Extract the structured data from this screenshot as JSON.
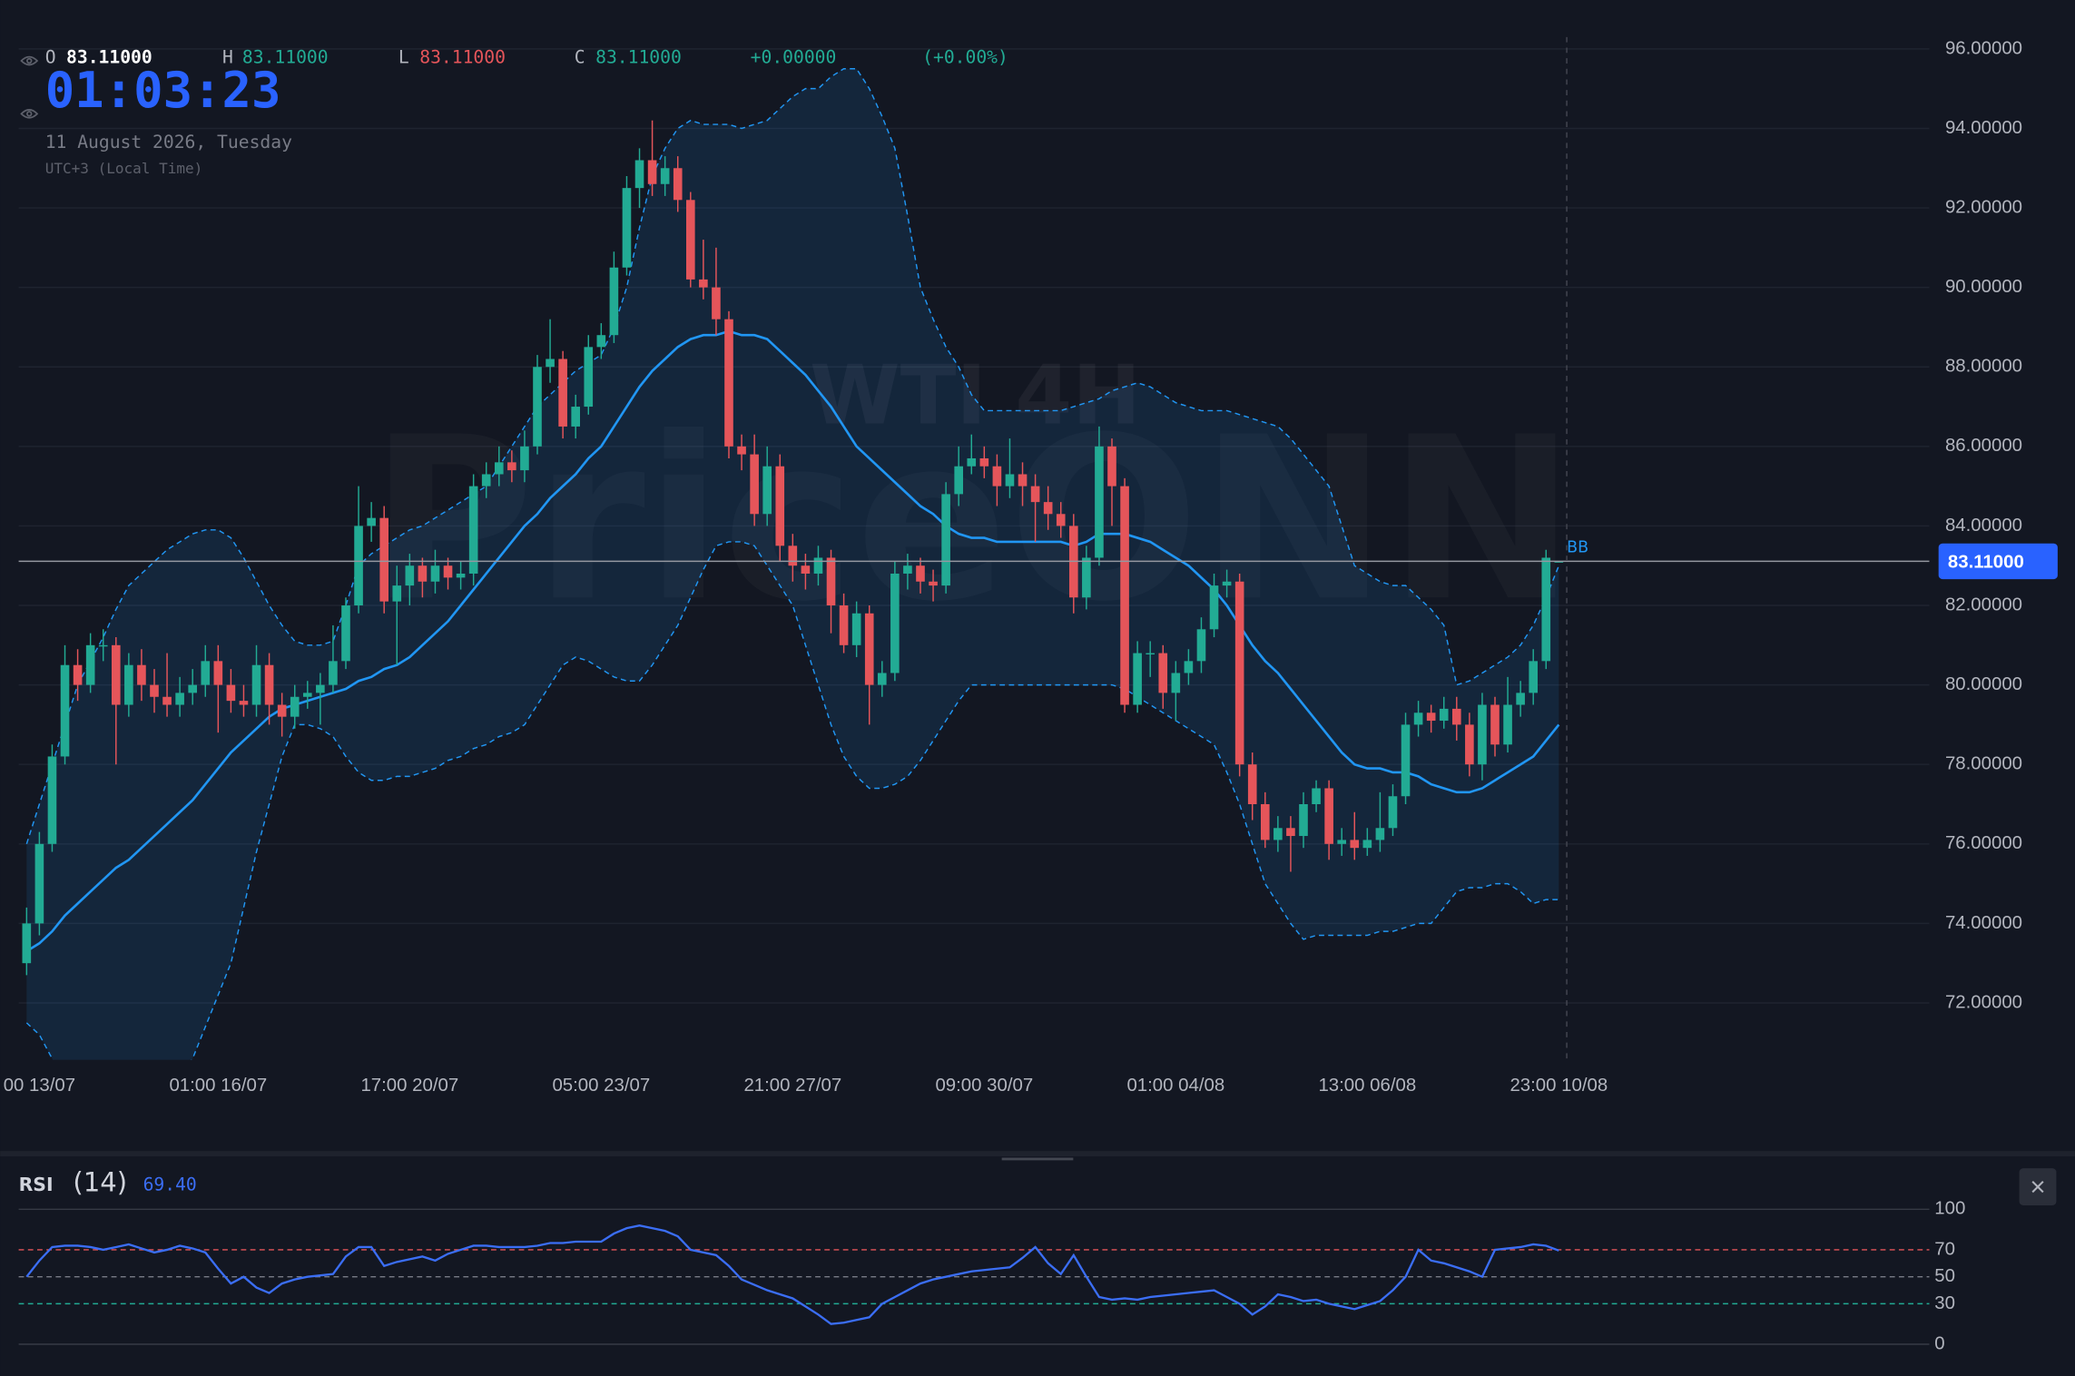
{
  "header": {
    "o_label": "O",
    "o": "83.11000",
    "h_label": "H",
    "h": "83.11000",
    "l_label": "L",
    "l": "83.11000",
    "c_label": "C",
    "c": "83.11000",
    "change": "+0.00000",
    "change_pct": "(+0.00%)",
    "clock": "01:03:23",
    "date": "11 August 2026, Tuesday",
    "timezone": "UTC+3 (Local Time)"
  },
  "chart_data": [
    {
      "type": "candlestick",
      "watermark": [
        "WTI 4H",
        "PriceONN"
      ],
      "categories": [
        null,
        "00 13/07",
        null,
        null,
        null,
        null,
        null,
        null,
        null,
        null,
        null,
        null,
        null,
        null,
        null,
        "01:00 16/07",
        null,
        null,
        null,
        null,
        null,
        null,
        null,
        null,
        null,
        null,
        null,
        null,
        null,
        null,
        "17:00 20/07",
        null,
        null,
        null,
        null,
        null,
        null,
        null,
        null,
        null,
        null,
        null,
        null,
        null,
        null,
        "05:00 23/07",
        null,
        null,
        null,
        null,
        null,
        null,
        null,
        null,
        null,
        null,
        null,
        null,
        null,
        null,
        "21:00 27/07",
        null,
        null,
        null,
        null,
        null,
        null,
        null,
        null,
        null,
        null,
        null,
        null,
        null,
        null,
        "09:00 30/07",
        null,
        null,
        null,
        null,
        null,
        null,
        null,
        null,
        null,
        null,
        null,
        null,
        null,
        null,
        "01:00 04/08",
        null,
        null,
        null,
        null,
        null,
        null,
        null,
        null,
        null,
        null,
        null,
        null,
        null,
        null,
        "13:00 06/08",
        null,
        null,
        null,
        null,
        null,
        null,
        null,
        null,
        null,
        null,
        null,
        null,
        null,
        null,
        "23:00 10/08"
      ],
      "open": [
        73.0,
        74.0,
        76.0,
        78.2,
        80.5,
        80.0,
        81.0,
        81.0,
        79.5,
        80.5,
        80.0,
        79.7,
        79.5,
        79.8,
        80.0,
        80.6,
        80.0,
        79.6,
        79.5,
        80.5,
        79.5,
        79.2,
        79.7,
        79.8,
        80.0,
        80.6,
        82.0,
        84.0,
        84.2,
        82.1,
        82.5,
        83.0,
        82.6,
        83.0,
        82.7,
        82.8,
        85.0,
        85.3,
        85.6,
        85.4,
        86.0,
        88.0,
        88.2,
        86.5,
        87.0,
        88.5,
        88.8,
        90.5,
        92.5,
        93.2,
        92.6,
        93.0,
        92.2,
        90.2,
        90.0,
        89.2,
        86.0,
        85.8,
        84.3,
        85.5,
        83.5,
        83.0,
        82.8,
        83.2,
        82.0,
        81.0,
        81.8,
        80.0,
        80.3,
        82.8,
        83.0,
        82.6,
        82.5,
        84.8,
        85.5,
        85.7,
        85.5,
        85.0,
        85.3,
        85.0,
        84.6,
        84.3,
        84.0,
        82.2,
        83.2,
        86.0,
        85.0,
        79.5,
        80.8,
        80.8,
        79.8,
        80.3,
        80.6,
        81.4,
        82.5,
        82.6,
        78.0,
        77.0,
        76.1,
        76.4,
        76.2,
        77.0,
        77.4,
        76.0,
        76.1,
        75.9,
        76.1,
        76.4,
        77.2,
        79.0,
        79.3,
        79.1,
        79.4,
        79.0,
        78.0,
        79.5,
        78.5,
        79.5,
        79.8,
        80.6,
        83.11
      ],
      "high": [
        74.4,
        76.3,
        78.5,
        81.0,
        80.9,
        81.3,
        81.4,
        81.2,
        80.8,
        80.9,
        80.4,
        80.8,
        80.2,
        80.4,
        81.0,
        81.0,
        80.4,
        80.0,
        81.0,
        80.8,
        79.8,
        80.0,
        80.1,
        80.3,
        81.5,
        82.2,
        85.0,
        84.6,
        84.5,
        83.0,
        83.3,
        83.2,
        83.4,
        83.2,
        83.1,
        85.3,
        85.6,
        86.0,
        85.9,
        86.4,
        88.3,
        89.2,
        88.4,
        87.3,
        88.8,
        89.1,
        90.9,
        92.8,
        93.5,
        94.2,
        93.3,
        93.3,
        92.4,
        91.2,
        91.0,
        89.4,
        86.3,
        86.3,
        86.0,
        85.8,
        83.8,
        83.3,
        83.5,
        83.4,
        82.3,
        82.1,
        82.0,
        80.6,
        83.1,
        83.3,
        83.2,
        82.9,
        85.1,
        86.0,
        86.3,
        86.0,
        85.8,
        86.2,
        85.6,
        85.3,
        85.0,
        84.6,
        84.3,
        83.5,
        86.5,
        86.2,
        85.2,
        81.1,
        81.1,
        81.0,
        80.6,
        80.9,
        81.7,
        82.8,
        82.9,
        82.8,
        78.3,
        77.3,
        76.7,
        76.7,
        77.3,
        77.6,
        77.6,
        76.4,
        76.8,
        76.4,
        77.3,
        77.5,
        79.3,
        79.6,
        79.5,
        79.7,
        79.7,
        79.3,
        79.8,
        79.7,
        80.2,
        80.1,
        80.9,
        83.4,
        83.11
      ],
      "low": [
        72.7,
        73.7,
        75.8,
        78.0,
        79.6,
        79.8,
        80.6,
        78.0,
        79.2,
        79.6,
        79.3,
        79.2,
        79.2,
        79.5,
        79.7,
        78.8,
        79.3,
        79.2,
        79.2,
        79.0,
        78.7,
        78.9,
        79.4,
        79.0,
        79.8,
        80.4,
        81.8,
        83.6,
        81.8,
        80.5,
        82.0,
        82.2,
        82.3,
        82.4,
        82.4,
        82.5,
        84.7,
        85.0,
        85.1,
        85.1,
        85.8,
        87.6,
        86.2,
        86.2,
        86.8,
        88.2,
        88.6,
        90.3,
        92.0,
        92.3,
        92.3,
        91.9,
        90.0,
        89.7,
        88.8,
        85.7,
        85.4,
        84.0,
        84.0,
        83.1,
        82.6,
        82.4,
        82.5,
        81.3,
        80.8,
        80.7,
        79.0,
        79.7,
        80.1,
        82.4,
        82.3,
        82.1,
        82.3,
        84.5,
        85.3,
        85.2,
        84.5,
        84.7,
        84.5,
        83.6,
        83.9,
        83.7,
        81.8,
        81.9,
        83.0,
        84.0,
        79.3,
        79.3,
        80.2,
        79.4,
        79.1,
        80.0,
        80.3,
        81.2,
        82.2,
        77.7,
        76.6,
        75.9,
        75.8,
        75.3,
        75.9,
        76.8,
        75.6,
        75.7,
        75.6,
        75.7,
        75.8,
        76.2,
        77.0,
        78.7,
        78.8,
        78.9,
        78.6,
        77.7,
        77.6,
        78.2,
        78.3,
        79.2,
        79.5,
        80.4,
        83.11
      ],
      "close": [
        74.0,
        76.0,
        78.2,
        80.5,
        80.0,
        81.0,
        81.0,
        79.5,
        80.5,
        80.0,
        79.7,
        79.5,
        79.8,
        80.0,
        80.6,
        80.0,
        79.6,
        79.5,
        80.5,
        79.5,
        79.2,
        79.7,
        79.8,
        80.0,
        80.6,
        82.0,
        84.0,
        84.2,
        82.1,
        82.5,
        83.0,
        82.6,
        83.0,
        82.7,
        82.8,
        85.0,
        85.3,
        85.6,
        85.4,
        86.0,
        88.0,
        88.2,
        86.5,
        87.0,
        88.5,
        88.8,
        90.5,
        92.5,
        93.2,
        92.6,
        93.0,
        92.2,
        90.2,
        90.0,
        89.2,
        86.0,
        85.8,
        84.3,
        85.5,
        83.5,
        83.0,
        82.8,
        83.2,
        82.0,
        81.0,
        81.8,
        80.0,
        80.3,
        82.8,
        83.0,
        82.6,
        82.5,
        84.8,
        85.5,
        85.7,
        85.5,
        85.0,
        85.3,
        85.0,
        84.6,
        84.3,
        84.0,
        82.2,
        83.2,
        86.0,
        85.0,
        79.5,
        80.8,
        80.8,
        79.8,
        80.3,
        80.6,
        81.4,
        82.5,
        82.6,
        78.0,
        77.0,
        76.1,
        76.4,
        76.2,
        77.0,
        77.4,
        76.0,
        76.1,
        75.9,
        76.1,
        76.4,
        77.2,
        79.0,
        79.3,
        79.1,
        79.4,
        79.0,
        78.0,
        79.5,
        78.5,
        79.5,
        79.8,
        80.6,
        83.2,
        83.11
      ],
      "up_color": "#22ab94",
      "down_color": "#e5555a",
      "bands": {
        "name": "BB",
        "color": "#2196f3",
        "upper": [
          76.0,
          77.0,
          78.0,
          79.0,
          80.0,
          80.6,
          81.2,
          81.9,
          82.5,
          82.8,
          83.1,
          83.4,
          83.6,
          83.8,
          83.9,
          83.9,
          83.7,
          83.2,
          82.6,
          82.0,
          81.5,
          81.1,
          81.0,
          81.0,
          81.1,
          82.0,
          83.0,
          83.3,
          83.5,
          83.7,
          83.9,
          84.0,
          84.2,
          84.4,
          84.6,
          84.8,
          85.0,
          85.5,
          86.0,
          86.5,
          87.0,
          87.3,
          87.6,
          87.9,
          88.1,
          88.3,
          89.0,
          90.0,
          91.5,
          92.8,
          93.5,
          94.0,
          94.2,
          94.1,
          94.1,
          94.1,
          94.0,
          94.1,
          94.2,
          94.5,
          94.8,
          95.0,
          95.0,
          95.3,
          95.5,
          95.5,
          95.0,
          94.3,
          93.5,
          91.8,
          90.0,
          89.2,
          88.5,
          88.0,
          87.3,
          86.9,
          86.9,
          86.9,
          86.9,
          86.9,
          86.9,
          86.9,
          87.0,
          87.1,
          87.2,
          87.4,
          87.5,
          87.6,
          87.5,
          87.3,
          87.1,
          87.0,
          86.9,
          86.9,
          86.9,
          86.8,
          86.7,
          86.6,
          86.5,
          86.2,
          85.8,
          85.4,
          85.0,
          84.0,
          83.0,
          82.8,
          82.6,
          82.5,
          82.5,
          82.2,
          81.9,
          81.5,
          80.0,
          80.1,
          80.3,
          80.5,
          80.7,
          81.0,
          81.5,
          82.2,
          83.0
        ],
        "middle": [
          73.3,
          73.5,
          73.8,
          74.2,
          74.5,
          74.8,
          75.1,
          75.4,
          75.6,
          75.9,
          76.2,
          76.5,
          76.8,
          77.1,
          77.5,
          77.9,
          78.3,
          78.6,
          78.9,
          79.2,
          79.4,
          79.5,
          79.6,
          79.7,
          79.8,
          79.9,
          80.1,
          80.2,
          80.4,
          80.5,
          80.7,
          81.0,
          81.3,
          81.6,
          82.0,
          82.4,
          82.8,
          83.2,
          83.6,
          84.0,
          84.3,
          84.7,
          85.0,
          85.3,
          85.7,
          86.0,
          86.5,
          87.0,
          87.5,
          87.9,
          88.2,
          88.5,
          88.7,
          88.8,
          88.8,
          88.9,
          88.8,
          88.8,
          88.7,
          88.4,
          88.1,
          87.8,
          87.4,
          87.0,
          86.5,
          86.0,
          85.7,
          85.4,
          85.1,
          84.8,
          84.5,
          84.3,
          84.0,
          83.8,
          83.7,
          83.7,
          83.6,
          83.6,
          83.6,
          83.6,
          83.6,
          83.6,
          83.5,
          83.6,
          83.8,
          83.8,
          83.8,
          83.7,
          83.6,
          83.4,
          83.2,
          83.0,
          82.7,
          82.4,
          82.0,
          81.5,
          81.0,
          80.6,
          80.3,
          79.9,
          79.5,
          79.1,
          78.7,
          78.3,
          78.0,
          77.9,
          77.9,
          77.8,
          77.8,
          77.7,
          77.5,
          77.4,
          77.3,
          77.3,
          77.4,
          77.6,
          77.8,
          78.0,
          78.2,
          78.6,
          79.0
        ],
        "lower": [
          71.5,
          71.2,
          70.6,
          70.0,
          69.5,
          69.1,
          68.8,
          68.7,
          68.8,
          69.0,
          69.3,
          69.7,
          70.1,
          70.6,
          71.4,
          72.2,
          73.0,
          74.4,
          75.8,
          77.0,
          78.2,
          79.0,
          79.0,
          78.9,
          78.7,
          78.2,
          77.8,
          77.6,
          77.6,
          77.7,
          77.7,
          77.8,
          77.9,
          78.1,
          78.2,
          78.4,
          78.5,
          78.7,
          78.8,
          79.0,
          79.5,
          80.0,
          80.5,
          80.7,
          80.6,
          80.4,
          80.2,
          80.1,
          80.1,
          80.5,
          81.0,
          81.5,
          82.2,
          82.9,
          83.5,
          83.6,
          83.6,
          83.5,
          83.0,
          82.5,
          82.0,
          81.0,
          80.0,
          79.0,
          78.2,
          77.7,
          77.4,
          77.4,
          77.5,
          77.7,
          78.1,
          78.6,
          79.1,
          79.6,
          80.0,
          80.0,
          80.0,
          80.0,
          80.0,
          80.0,
          80.0,
          80.0,
          80.0,
          80.0,
          80.0,
          80.0,
          79.9,
          79.7,
          79.5,
          79.3,
          79.1,
          78.9,
          78.7,
          78.5,
          77.8,
          77.0,
          76.0,
          75.0,
          74.5,
          74.0,
          73.6,
          73.7,
          73.7,
          73.7,
          73.7,
          73.7,
          73.8,
          73.8,
          73.9,
          74.0,
          74.0,
          74.4,
          74.8,
          74.9,
          74.9,
          75.0,
          75.0,
          74.8,
          74.5,
          74.6,
          74.6
        ]
      },
      "last": {
        "value": 83.11,
        "label": "83.11000"
      },
      "ylim": [
        70.57,
        97.23
      ],
      "yticks": [
        {
          "value": 72,
          "label": "72.00000"
        },
        {
          "value": 74,
          "label": "74.00000"
        },
        {
          "value": 76,
          "label": "76.00000"
        },
        {
          "value": 78,
          "label": "78.00000"
        },
        {
          "value": 80,
          "label": "80.00000"
        },
        {
          "value": 82,
          "label": "82.00000"
        },
        {
          "value": 84,
          "label": "84.00000"
        },
        {
          "value": 86,
          "label": "86.00000"
        },
        {
          "value": 88,
          "label": "88.00000"
        },
        {
          "value": 90,
          "label": "90.00000"
        },
        {
          "value": 92,
          "label": "92.00000"
        },
        {
          "value": 94,
          "label": "94.00000"
        },
        {
          "value": 96,
          "label": "96.00000"
        }
      ],
      "grid": true
    },
    {
      "type": "line",
      "title": "RSI",
      "subtitle": "(14)",
      "value_label": "69.40",
      "color": "#3b6ef5",
      "values": [
        50,
        62,
        72,
        73,
        73,
        72,
        70,
        72,
        74,
        71,
        68,
        70,
        73,
        71,
        68,
        56,
        45,
        50,
        42,
        38,
        45,
        48,
        50,
        51,
        52,
        65,
        72,
        72,
        58,
        61,
        63,
        65,
        62,
        67,
        70,
        73,
        73,
        72,
        72,
        72,
        73,
        75,
        75,
        76,
        76,
        76,
        82,
        86,
        88,
        86,
        84,
        80,
        70,
        68,
        66,
        58,
        48,
        44,
        40,
        37,
        34,
        28,
        22,
        15,
        16,
        18,
        20,
        30,
        35,
        40,
        45,
        48,
        50,
        52,
        54,
        55,
        56,
        57,
        64,
        72,
        60,
        52,
        66,
        50,
        35,
        33,
        34,
        33,
        35,
        36,
        37,
        38,
        39,
        40,
        35,
        30,
        22,
        28,
        37,
        35,
        32,
        33,
        30,
        28,
        26,
        29,
        32,
        40,
        50,
        70,
        62,
        60,
        57,
        54,
        50,
        70,
        71,
        72,
        74,
        73,
        69.4
      ],
      "ylim": [
        0,
        100
      ],
      "yticks": [
        0,
        30,
        50,
        70,
        100
      ],
      "grid": true
    }
  ]
}
